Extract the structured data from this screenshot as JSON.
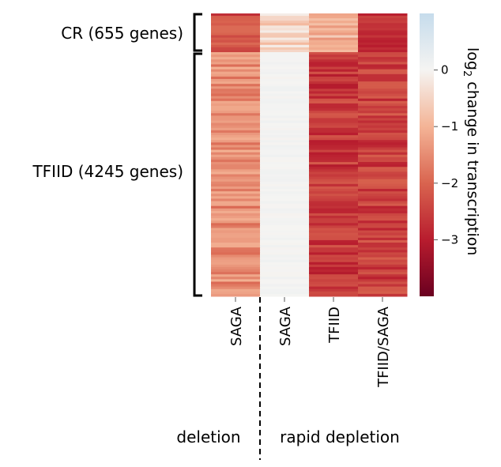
{
  "chart_data": {
    "type": "heatmap",
    "title": "",
    "columns": [
      "SAGA",
      "SAGA",
      "TFIID",
      "TFIID/SAGA"
    ],
    "column_groups": [
      {
        "label": "deletion",
        "columns": [
          0
        ]
      },
      {
        "label": "rapid depletion",
        "columns": [
          1,
          2,
          3
        ]
      }
    ],
    "row_groups": [
      {
        "label": "CR (655 genes)",
        "genes": 655,
        "approx_mean_values": [
          -2.3,
          -0.5,
          -1.0,
          -2.7
        ]
      },
      {
        "label": "TFIID (4245 genes)",
        "genes": 4245,
        "approx_mean_values": [
          -1.5,
          0.05,
          -2.6,
          -2.5
        ]
      }
    ],
    "colorbar": {
      "label_prefix": "log",
      "label_sub": "2",
      "label_suffix": " change in transcription",
      "range": [
        -4,
        1
      ],
      "ticks": [
        0,
        -1,
        -2,
        -3
      ],
      "tick_labels": [
        "0",
        "−1",
        "−2",
        "−3"
      ],
      "colors": {
        "1": "#c6dcec",
        "0": "#f5f4f2",
        "-1": "#f4b496",
        "-2": "#d9644f",
        "-3": "#b81c2e",
        "-4": "#6a0020"
      }
    }
  }
}
